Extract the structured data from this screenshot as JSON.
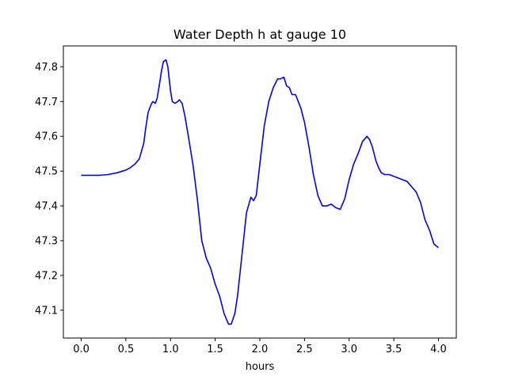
{
  "chart_data": {
    "type": "line",
    "title": "Water Depth h at gauge 10",
    "xlabel": "hours",
    "ylabel": "",
    "xlim": [
      -0.2,
      4.2
    ],
    "ylim": [
      47.02,
      47.86
    ],
    "xticks": [
      0.0,
      0.5,
      1.0,
      1.5,
      2.0,
      2.5,
      3.0,
      3.5,
      4.0
    ],
    "xtick_labels": [
      "0.0",
      "0.5",
      "1.0",
      "1.5",
      "2.0",
      "2.5",
      "3.0",
      "3.5",
      "4.0"
    ],
    "yticks": [
      47.1,
      47.2,
      47.3,
      47.4,
      47.5,
      47.6,
      47.7,
      47.8
    ],
    "ytick_labels": [
      "47.1",
      "47.2",
      "47.3",
      "47.4",
      "47.5",
      "47.6",
      "47.7",
      "47.8"
    ],
    "grid": false,
    "series": [
      {
        "color": "#0000ff",
        "x": [
          0.0,
          0.1,
          0.2,
          0.3,
          0.4,
          0.5,
          0.55,
          0.6,
          0.65,
          0.7,
          0.72,
          0.75,
          0.78,
          0.8,
          0.83,
          0.85,
          0.87,
          0.9,
          0.92,
          0.95,
          0.97,
          1.0,
          1.02,
          1.05,
          1.08,
          1.1,
          1.13,
          1.16,
          1.2,
          1.25,
          1.3,
          1.35,
          1.4,
          1.45,
          1.5,
          1.55,
          1.6,
          1.65,
          1.68,
          1.72,
          1.75,
          1.8,
          1.85,
          1.9,
          1.93,
          1.96,
          2.0,
          2.05,
          2.1,
          2.15,
          2.2,
          2.23,
          2.27,
          2.3,
          2.33,
          2.36,
          2.4,
          2.43,
          2.46,
          2.5,
          2.55,
          2.6,
          2.65,
          2.7,
          2.75,
          2.8,
          2.85,
          2.9,
          2.95,
          3.0,
          3.05,
          3.1,
          3.15,
          3.2,
          3.23,
          3.26,
          3.3,
          3.33,
          3.36,
          3.4,
          3.45,
          3.5,
          3.55,
          3.6,
          3.65,
          3.7,
          3.75,
          3.8,
          3.85,
          3.9,
          3.95,
          4.0
        ],
        "y": [
          47.488,
          47.488,
          47.488,
          47.49,
          47.495,
          47.503,
          47.51,
          47.52,
          47.535,
          47.58,
          47.62,
          47.67,
          47.69,
          47.7,
          47.695,
          47.71,
          47.74,
          47.79,
          47.815,
          47.82,
          47.8,
          47.73,
          47.7,
          47.695,
          47.7,
          47.705,
          47.695,
          47.66,
          47.6,
          47.52,
          47.42,
          47.3,
          47.25,
          47.22,
          47.175,
          47.14,
          47.09,
          47.06,
          47.06,
          47.09,
          47.14,
          47.26,
          47.38,
          47.425,
          47.415,
          47.43,
          47.52,
          47.63,
          47.7,
          47.74,
          47.765,
          47.765,
          47.77,
          47.745,
          47.74,
          47.72,
          47.72,
          47.7,
          47.68,
          47.64,
          47.57,
          47.49,
          47.43,
          47.4,
          47.4,
          47.405,
          47.395,
          47.39,
          47.42,
          47.475,
          47.52,
          47.55,
          47.585,
          47.6,
          47.59,
          47.57,
          47.53,
          47.51,
          47.495,
          47.49,
          47.49,
          47.485,
          47.48,
          47.475,
          47.47,
          47.455,
          47.44,
          47.41,
          47.36,
          47.33,
          47.29,
          47.28
        ]
      }
    ]
  }
}
